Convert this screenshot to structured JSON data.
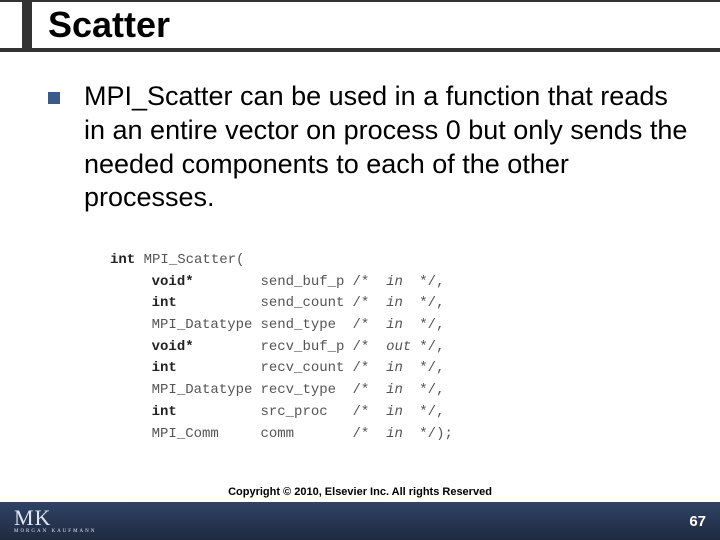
{
  "title": "Scatter",
  "bullet_text": "MPI_Scatter can be used in a function that reads in an entire vector on process 0 but only sends the needed components to each of the other processes.",
  "function_signature": {
    "return_type": "int",
    "name": "MPI_Scatter",
    "params": [
      {
        "type": "void*",
        "name": "send_buf_p",
        "dir": "in",
        "term": "*/,"
      },
      {
        "type": "int",
        "name": "send_count",
        "dir": "in",
        "term": "*/,"
      },
      {
        "type": "MPI_Datatype",
        "name": "send_type",
        "dir": "in",
        "term": "*/,"
      },
      {
        "type": "void*",
        "name": "recv_buf_p",
        "dir": "out",
        "term": "*/,"
      },
      {
        "type": "int",
        "name": "recv_count",
        "dir": "in",
        "term": "*/,"
      },
      {
        "type": "MPI_Datatype",
        "name": "recv_type",
        "dir": "in",
        "term": "*/,"
      },
      {
        "type": "int",
        "name": "src_proc",
        "dir": "in",
        "term": "*/,"
      },
      {
        "type": "MPI_Comm",
        "name": "comm",
        "dir": "in",
        "term": "*/);"
      }
    ]
  },
  "bold_types": [
    "void*",
    "int"
  ],
  "copyright": "Copyright © 2010, Elsevier Inc. All rights Reserved",
  "page_number": "67",
  "logo": {
    "mk": "MK",
    "sub": "MORGAN KAUFMANN"
  },
  "colors": {
    "title_bar": "#333333",
    "bullet": "#3a5a8a",
    "footer_bg": "#2b3a57"
  }
}
